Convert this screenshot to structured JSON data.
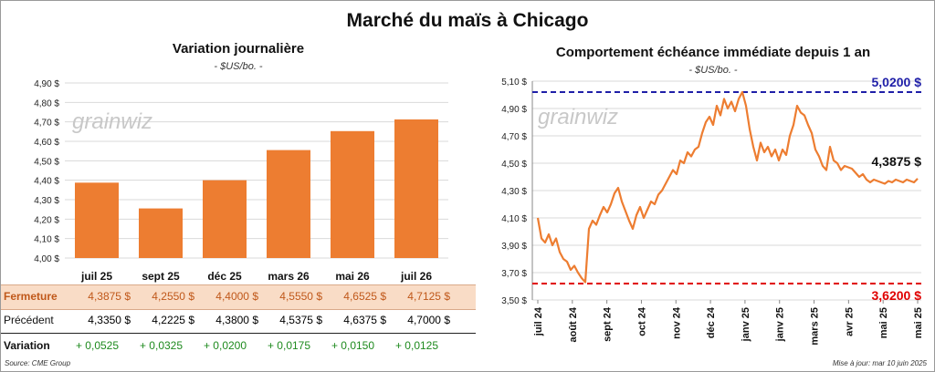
{
  "title": "Marché du maïs à Chicago",
  "left": {
    "title": "Variation  journalière",
    "unit": "- $US/bo. -",
    "watermark": "grainwiz"
  },
  "right": {
    "title": "Comportement  échéance immédiate depuis 1 an",
    "unit": "- $US/bo. -",
    "watermark": "grainwiz",
    "high_label": "5,0200 $",
    "low_label": "3,6200 $",
    "last_label": "4,3875 $"
  },
  "table": {
    "close_label": "Fermeture",
    "prev_label": "Précédent",
    "var_label": "Variation",
    "close": [
      "4,3875  $",
      "4,2550  $",
      "4,4000  $",
      "4,5550  $",
      "4,6525  $",
      "4,7125  $"
    ],
    "prev": [
      "4,3350  $",
      "4,2225  $",
      "4,3800  $",
      "4,5375  $",
      "4,6375  $",
      "4,7000  $"
    ],
    "var": [
      "+ 0,0525",
      "+ 0,0325",
      "+ 0,0200",
      "+ 0,0175",
      "+ 0,0150",
      "+ 0,0125"
    ]
  },
  "footer": {
    "source": "Source: CME Group",
    "update": "Mise à jour: mar 10 juin 2025"
  },
  "colors": {
    "bar": "#ed7d31",
    "line": "#ed7d31",
    "high": "#1f1fa8",
    "low": "#e00000",
    "grid": "#d9d9d9"
  },
  "chart_data": [
    {
      "type": "bar",
      "title": "Variation  journalière",
      "subtitle": "- $US/bo. -",
      "categories": [
        "juil 25",
        "sept 25",
        "déc 25",
        "mars 26",
        "mai 26",
        "juil 26"
      ],
      "values": [
        4.3875,
        4.255,
        4.4,
        4.555,
        4.6525,
        4.7125
      ],
      "ylim": [
        4.0,
        4.9
      ],
      "yticks": [
        "4,00 $",
        "4,10 $",
        "4,20 $",
        "4,30 $",
        "4,40 $",
        "4,50 $",
        "4,60 $",
        "4,70 $",
        "4,80 $",
        "4,90 $"
      ],
      "grid": true
    },
    {
      "type": "line",
      "title": "Comportement  échéance immédiate depuis 1 an",
      "subtitle": "- $US/bo. -",
      "ylim": [
        3.5,
        5.1
      ],
      "yticks": [
        "3,50 $",
        "3,70 $",
        "3,90 $",
        "4,10 $",
        "4,30 $",
        "4,50 $",
        "4,70 $",
        "4,90 $",
        "5,10 $"
      ],
      "xticks": [
        "juil 24",
        "août 24",
        "sept 24",
        "oct 24",
        "nov 24",
        "déc 24",
        "janv 25",
        "janv 25",
        "mars 25",
        "avr 25",
        "mai 25",
        "mai 25"
      ],
      "grid": true,
      "reference_lines": [
        {
          "value": 5.02,
          "label": "5,0200 $"
        },
        {
          "value": 3.62,
          "label": "3,6200 $"
        }
      ],
      "x": [
        0,
        4,
        8,
        12,
        16,
        20,
        24,
        28,
        32,
        36,
        40,
        44,
        48,
        52,
        56,
        60,
        64,
        68,
        72,
        76,
        80,
        84,
        88,
        92,
        96,
        100,
        104,
        108,
        112,
        116,
        120,
        124,
        128,
        132,
        136,
        140,
        144,
        148,
        152,
        156,
        160,
        164,
        168,
        172,
        176,
        180,
        184,
        188,
        192,
        196,
        200,
        204,
        208,
        212,
        216,
        220,
        224,
        228,
        232,
        236,
        240,
        244,
        248,
        252,
        256,
        260,
        264,
        268,
        272,
        276,
        280,
        284,
        288,
        292,
        296,
        300,
        304,
        308,
        312,
        316,
        320,
        324,
        328,
        332,
        336,
        340,
        344,
        348,
        352,
        356,
        360,
        364,
        368,
        372,
        376,
        380,
        384,
        388,
        392,
        396,
        400,
        404,
        408,
        412,
        416
      ],
      "y": [
        4.1,
        3.95,
        3.92,
        3.98,
        3.9,
        3.95,
        3.85,
        3.8,
        3.78,
        3.72,
        3.75,
        3.7,
        3.66,
        3.63,
        4.02,
        4.08,
        4.05,
        4.12,
        4.18,
        4.14,
        4.2,
        4.28,
        4.32,
        4.22,
        4.15,
        4.08,
        4.02,
        4.12,
        4.18,
        4.1,
        4.16,
        4.22,
        4.2,
        4.27,
        4.3,
        4.35,
        4.4,
        4.45,
        4.42,
        4.52,
        4.5,
        4.58,
        4.55,
        4.6,
        4.62,
        4.72,
        4.8,
        4.84,
        4.78,
        4.92,
        4.85,
        4.97,
        4.9,
        4.95,
        4.88,
        4.97,
        5.02,
        4.92,
        4.75,
        4.62,
        4.52,
        4.65,
        4.58,
        4.62,
        4.55,
        4.6,
        4.52,
        4.6,
        4.56,
        4.7,
        4.78,
        4.92,
        4.87,
        4.85,
        4.78,
        4.72,
        4.6,
        4.55,
        4.48,
        4.45,
        4.62,
        4.52,
        4.5,
        4.45,
        4.48,
        4.47,
        4.46,
        4.43,
        4.4,
        4.42,
        4.38,
        4.36,
        4.38,
        4.37,
        4.36,
        4.35,
        4.37,
        4.36,
        4.38,
        4.37,
        4.36,
        4.38,
        4.37,
        4.36,
        4.3875
      ]
    }
  ]
}
